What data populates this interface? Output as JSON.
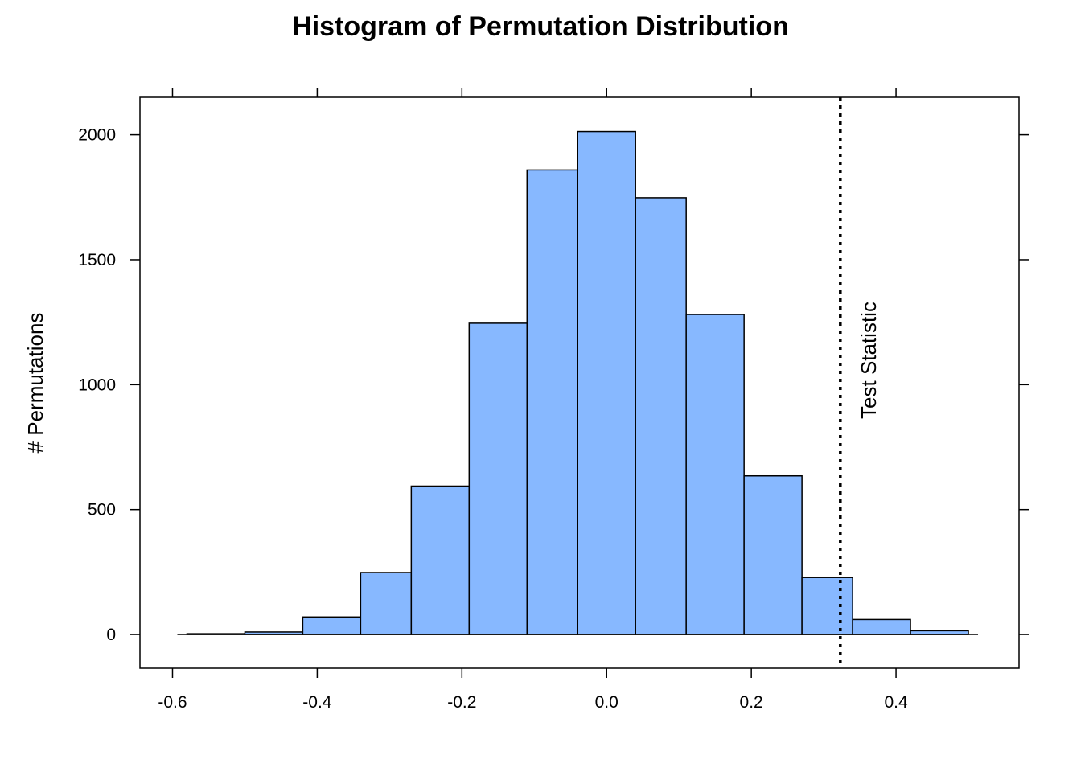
{
  "chart_data": {
    "type": "histogram",
    "title": "Histogram of Permutation Distribution",
    "xlabel": "",
    "ylabel": "# Permutations",
    "xlim": [
      -0.645,
      0.57
    ],
    "ylim": [
      -135,
      2150
    ],
    "xticks": [
      -0.6,
      -0.4,
      -0.2,
      0.0,
      0.2,
      0.4
    ],
    "xtick_labels": [
      "-0.6",
      "-0.4",
      "-0.2",
      "0.0",
      "0.2",
      "0.4"
    ],
    "yticks": [
      0,
      500,
      1000,
      1500,
      2000
    ],
    "ytick_labels": [
      "0",
      "500",
      "1000",
      "1500",
      "2000"
    ],
    "bin_edges": [
      -0.58,
      -0.5,
      -0.42,
      -0.34,
      -0.27,
      -0.19,
      -0.11,
      -0.04,
      0.04,
      0.11,
      0.19,
      0.27,
      0.34,
      0.42,
      0.5
    ],
    "counts": [
      3,
      10,
      70,
      248,
      594,
      1246,
      1859,
      2013,
      1748,
      1281,
      635,
      228,
      60,
      15
    ],
    "bar_color": "#87b8ff",
    "bar_edge_color": "#000000",
    "reference_line": {
      "x": 0.323,
      "label": "Test Statistic",
      "style": "dotted"
    },
    "grid": false,
    "legend": "none"
  }
}
